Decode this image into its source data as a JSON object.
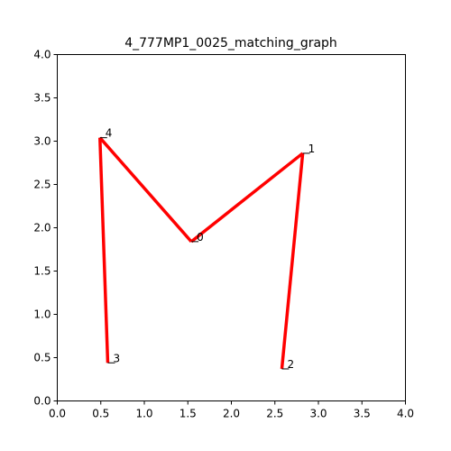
{
  "chart_data": {
    "type": "line",
    "title": "4_777MP1_0025_matching_graph",
    "xlabel": "",
    "ylabel": "",
    "xlim": [
      0,
      4
    ],
    "ylim": [
      0,
      4
    ],
    "grid": false,
    "x_ticks": [
      0.0,
      0.5,
      1.0,
      1.5,
      2.0,
      2.5,
      3.0,
      3.5,
      4.0
    ],
    "x_tick_labels": [
      "0.0",
      "0.5",
      "1.0",
      "1.5",
      "2.0",
      "2.5",
      "3.0",
      "3.5",
      "4.0"
    ],
    "y_ticks": [
      0.0,
      0.5,
      1.0,
      1.5,
      2.0,
      2.5,
      3.0,
      3.5,
      4.0
    ],
    "y_tick_labels": [
      "0.0",
      "0.5",
      "1.0",
      "1.5",
      "2.0",
      "2.5",
      "3.0",
      "3.5",
      "4.0"
    ],
    "line_color": "#ff0000",
    "nodes": [
      {
        "label": "0",
        "x": 1.54,
        "y": 1.84
      },
      {
        "label": "1",
        "x": 2.82,
        "y": 2.86
      },
      {
        "label": "2",
        "x": 2.58,
        "y": 0.37
      },
      {
        "label": "3",
        "x": 0.58,
        "y": 0.44
      },
      {
        "label": "4",
        "x": 0.49,
        "y": 3.04
      }
    ],
    "edges": [
      [
        3,
        4
      ],
      [
        4,
        0
      ],
      [
        0,
        1
      ],
      [
        1,
        2
      ]
    ]
  }
}
